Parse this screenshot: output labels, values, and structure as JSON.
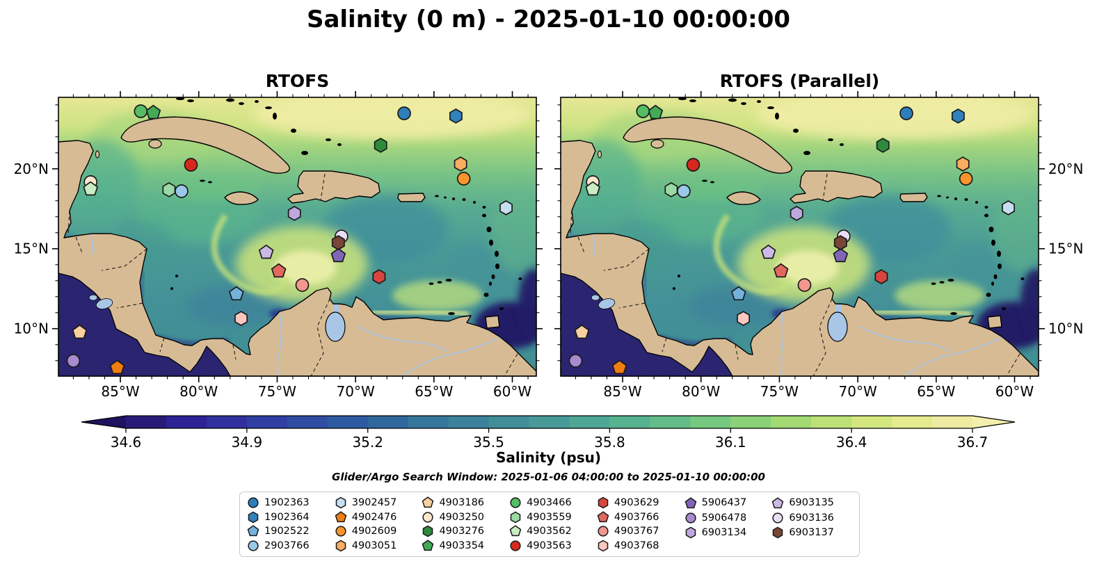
{
  "title": "Salinity (0 m) - 2025-01-10 00:00:00",
  "panels": [
    {
      "title": "RTOFS"
    },
    {
      "title": "RTOFS (Parallel)"
    }
  ],
  "axes": {
    "lon_ticks": [
      {
        "value": -85,
        "label": "85°W"
      },
      {
        "value": -80,
        "label": "80°W"
      },
      {
        "value": -75,
        "label": "75°W"
      },
      {
        "value": -70,
        "label": "70°W"
      },
      {
        "value": -65,
        "label": "65°W"
      },
      {
        "value": -60,
        "label": "60°W"
      }
    ],
    "lat_ticks": [
      {
        "value": 20,
        "label": "20°N"
      },
      {
        "value": 15,
        "label": "15°N"
      },
      {
        "value": 10,
        "label": "10°N"
      }
    ]
  },
  "colorbar": {
    "label": "Salinity (psu)",
    "ticks": [
      "34.6",
      "34.9",
      "35.2",
      "35.5",
      "35.8",
      "36.1",
      "36.4",
      "36.7"
    ],
    "tick_values": [
      34.6,
      34.9,
      35.2,
      35.5,
      35.8,
      36.1,
      36.4,
      36.7
    ],
    "range": [
      34.6,
      36.7
    ],
    "segment_colors": [
      "#281a78",
      "#2c2494",
      "#30309e",
      "#2f3fa2",
      "#2e4da3",
      "#2e5aa1",
      "#30689e",
      "#35769c",
      "#3b829a",
      "#418e99",
      "#479a97",
      "#4ea694",
      "#57b28f",
      "#64bd88",
      "#76c880",
      "#8bd178",
      "#a3da74",
      "#bce177",
      "#d3e77f",
      "#e4eb8e",
      "#eeeca2"
    ],
    "arrow_left_color": "#1e1260",
    "arrow_right_color": "#f3efad"
  },
  "subtitle": "Glider/Argo Search Window: 2025-01-06 04:00:00 to 2025-01-10 00:00:00",
  "chart_data": {
    "type": "scatter-map",
    "variable": "Salinity (psu)",
    "depth_m": 0,
    "valid_time": "2025-01-10 00:00:00",
    "models": [
      "RTOFS",
      "RTOFS (Parallel)"
    ],
    "map_extent": {
      "lon": [
        -88.95,
        -58.47
      ],
      "lat": [
        7.03,
        24.47
      ]
    },
    "colormap_range": [
      34.6,
      36.7
    ],
    "floats": [
      {
        "id": "1902363",
        "shape": "circle",
        "color": "#2e7ebc",
        "lon": -66.9,
        "lat": 23.47
      },
      {
        "id": "1902364",
        "shape": "hexagon",
        "color": "#3181bd",
        "lon": -63.6,
        "lat": 23.3
      },
      {
        "id": "1902522",
        "shape": "pentagon",
        "color": "#74b2dc",
        "lon": -77.6,
        "lat": 12.17
      },
      {
        "id": "2903766",
        "shape": "circle",
        "color": "#9ac8e8",
        "lon": -81.1,
        "lat": 18.6
      },
      {
        "id": "3902457",
        "shape": "hexagon",
        "color": "#c6def2",
        "lon": -60.4,
        "lat": 17.56
      },
      {
        "id": "4902476",
        "shape": "pentagon",
        "color": "#ef7e12",
        "lon": -85.2,
        "lat": 7.56
      },
      {
        "id": "4902609",
        "shape": "circle",
        "color": "#f8952d",
        "lon": -63.1,
        "lat": 19.38
      },
      {
        "id": "4903051",
        "shape": "hexagon",
        "color": "#f9ad60",
        "lon": -63.3,
        "lat": 20.3
      },
      {
        "id": "4903186",
        "shape": "pentagon",
        "color": "#fbd0a0",
        "lon": -87.6,
        "lat": 9.77
      },
      {
        "id": "4903250",
        "shape": "circle",
        "color": "#fde8ce",
        "lon": -86.9,
        "lat": 19.17
      },
      {
        "id": "4903276",
        "shape": "hexagon",
        "color": "#2e8b3d",
        "lon": -68.4,
        "lat": 21.47
      },
      {
        "id": "4903354",
        "shape": "pentagon",
        "color": "#43aa58",
        "lon": -82.9,
        "lat": 23.51
      },
      {
        "id": "4903466",
        "shape": "circle",
        "color": "#55bd64",
        "lon": -83.7,
        "lat": 23.6
      },
      {
        "id": "4903559",
        "shape": "hexagon",
        "color": "#9bd9a4",
        "lon": -81.9,
        "lat": 18.69
      },
      {
        "id": "4903562",
        "shape": "pentagon",
        "color": "#c9ecc3",
        "lon": -86.9,
        "lat": 18.73
      },
      {
        "id": "4903563",
        "shape": "circle",
        "color": "#d7281e",
        "lon": -80.5,
        "lat": 20.25
      },
      {
        "id": "4903629",
        "shape": "hexagon",
        "color": "#d8453e",
        "lon": -68.5,
        "lat": 13.25
      },
      {
        "id": "4903766",
        "shape": "pentagon",
        "color": "#e2685e",
        "lon": -74.9,
        "lat": 13.6
      },
      {
        "id": "4903767",
        "shape": "circle",
        "color": "#f2978e",
        "lon": -73.4,
        "lat": 12.73
      },
      {
        "id": "4903768",
        "shape": "hexagon",
        "color": "#fbc8c0",
        "lon": -77.3,
        "lat": 10.64
      },
      {
        "id": "5906437",
        "shape": "pentagon",
        "color": "#8065b6",
        "lon": -71.1,
        "lat": 14.56
      },
      {
        "id": "5906478",
        "shape": "circle",
        "color": "#a68bce",
        "lon": -88.0,
        "lat": 7.99
      },
      {
        "id": "6903134",
        "shape": "hexagon",
        "color": "#bfa8de",
        "lon": -73.9,
        "lat": 17.21
      },
      {
        "id": "6903135",
        "shape": "pentagon",
        "color": "#cdb9e6",
        "lon": -75.7,
        "lat": 14.77
      },
      {
        "id": "6903136",
        "shape": "circle",
        "color": "#e9def6",
        "lon": -70.9,
        "lat": 15.77
      },
      {
        "id": "6903137",
        "shape": "hexagon",
        "color": "#7a4636",
        "lon": -71.1,
        "lat": 15.38
      }
    ]
  },
  "legend": {
    "columns": [
      4,
      4,
      4,
      4,
      4,
      3,
      3
    ]
  }
}
